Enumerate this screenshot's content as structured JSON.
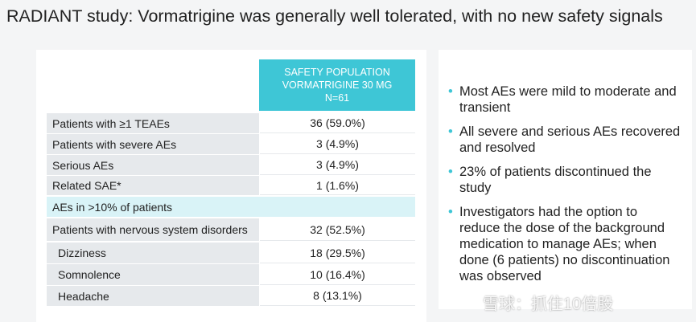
{
  "title": "RADIANT study: Vormatrigine was generally well tolerated, with no new safety signals",
  "table": {
    "header": [
      "SAFETY POPULATION",
      "VORMATRIGINE 30 MG",
      "N=61"
    ],
    "rows": [
      [
        "Patients with ≥1 TEAEs",
        "36 (59.0%)"
      ],
      [
        "Patients with severe AEs",
        "3 (4.9%)"
      ],
      [
        "Serious AEs",
        "3 (4.9%)"
      ],
      [
        "Related SAE*",
        "1 (1.6%)"
      ]
    ],
    "section": "AEs in >10% of patients",
    "section_rows": [
      [
        "Patients with nervous system disorders",
        "32 (52.5%)"
      ],
      [
        "Dizziness",
        "18 (29.5%)"
      ],
      [
        "Somnolence",
        "10 (16.4%)"
      ],
      [
        "Headache",
        "8 (13.1%)"
      ]
    ]
  },
  "bullets": [
    "Most AEs were mild to moderate and transient",
    "All severe and serious AEs recovered and resolved",
    "23% of patients discontinued the study",
    "Investigators had the option to reduce the dose of the background medication to manage AEs; when done (6 patients) no discontinuation was observed"
  ],
  "watermark": "雪球：抓住10倍股"
}
